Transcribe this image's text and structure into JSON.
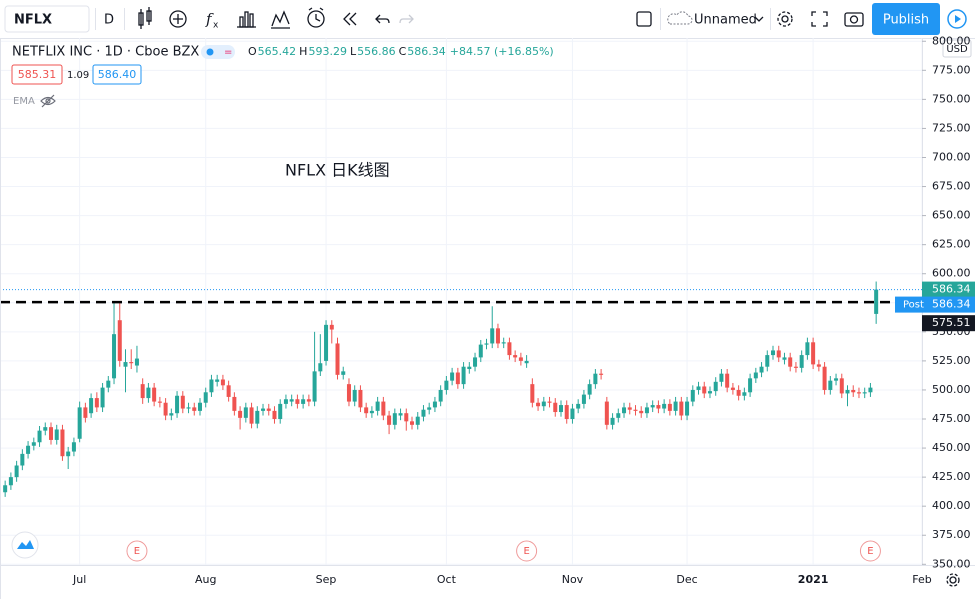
{
  "toolbar": {
    "symbol": "NFLX",
    "interval": "D",
    "layout_name": "Unnamed",
    "publish": "Publish"
  },
  "legend": {
    "title": "NETFLIX INC · 1D · Cboe BZX",
    "open_prefix": "O",
    "high_prefix": "H",
    "low_prefix": "L",
    "close_prefix": "C",
    "change": "+84.57 (+16.85%)",
    "bid": {
      "value": 585.31,
      "label": "585.31"
    },
    "spread": 1.09,
    "ask": {
      "value": 586.4,
      "label": "586.40"
    },
    "indicator": "EMA"
  },
  "chart_data": {
    "type": "candlestick",
    "annotation": "NFLX 日K线图",
    "currency": "USD",
    "up_color": "#26a69a",
    "down_color": "#ef5350",
    "xlim": [
      -0.9,
      160
    ],
    "ylim": [
      349.4,
      802.8
    ],
    "xticks": [
      {
        "value": 13,
        "label": "Jul"
      },
      {
        "value": 35,
        "label": "Aug"
      },
      {
        "value": 56,
        "label": "Sep"
      },
      {
        "value": 77,
        "label": "Oct"
      },
      {
        "value": 99,
        "label": "Nov"
      },
      {
        "value": 119,
        "label": "Dec"
      },
      {
        "value": 141,
        "label": "2021"
      },
      {
        "value": 160,
        "label": "Feb"
      }
    ],
    "yticks": [
      {
        "value": 350,
        "label": "350.00"
      },
      {
        "value": 375,
        "label": "375.00"
      },
      {
        "value": 400,
        "label": "400.00"
      },
      {
        "value": 425,
        "label": "425.00"
      },
      {
        "value": 450,
        "label": "450.00"
      },
      {
        "value": 475,
        "label": "475.00"
      },
      {
        "value": 500,
        "label": "500.00"
      },
      {
        "value": 525,
        "label": "525.00"
      },
      {
        "value": 550,
        "label": "550.00"
      },
      {
        "value": 575,
        "label": "575.00"
      },
      {
        "value": 600,
        "label": "600.00"
      },
      {
        "value": 625,
        "label": "625.00"
      },
      {
        "value": 650,
        "label": "650.00"
      },
      {
        "value": 675,
        "label": "675.00"
      },
      {
        "value": 700,
        "label": "700.00"
      },
      {
        "value": 725,
        "label": "725.00"
      },
      {
        "value": 750,
        "label": "750.00"
      },
      {
        "value": 775,
        "label": "775.00"
      },
      {
        "value": 800,
        "label": "800.00"
      }
    ],
    "post_label": "Post",
    "post_close": 575.51,
    "earnings_marker": "E",
    "earnings_index": [
      23,
      91,
      151
    ],
    "candles": [
      [
        412,
        422,
        408,
        418
      ],
      [
        418,
        429,
        414,
        425
      ],
      [
        425,
        439,
        421,
        435
      ],
      [
        435,
        449,
        431,
        445
      ],
      [
        445,
        456,
        441,
        452
      ],
      [
        452,
        459,
        448,
        455
      ],
      [
        455,
        469,
        451,
        465
      ],
      [
        465,
        472,
        461,
        468
      ],
      [
        468,
        472,
        453,
        457
      ],
      [
        457,
        470,
        453,
        466
      ],
      [
        466,
        470,
        439,
        443
      ],
      [
        443,
        451,
        432,
        447
      ],
      [
        447,
        459,
        443,
        455
      ],
      [
        458,
        490,
        455,
        485
      ],
      [
        485,
        489,
        472,
        476
      ],
      [
        480,
        497,
        476,
        493
      ],
      [
        493,
        498,
        481,
        485
      ],
      [
        485,
        506,
        481,
        502
      ],
      [
        502,
        512,
        498,
        508
      ],
      [
        510,
        575,
        505,
        548
      ],
      [
        560,
        575,
        520,
        525
      ],
      [
        520,
        535,
        498,
        524
      ],
      [
        524,
        535,
        518,
        523
      ],
      [
        521,
        538,
        515,
        527
      ],
      [
        505,
        510,
        488,
        493
      ],
      [
        493,
        506,
        489,
        502
      ],
      [
        502,
        506,
        486,
        490
      ],
      [
        490,
        494,
        485,
        489
      ],
      [
        489,
        493,
        474,
        478
      ],
      [
        478,
        484,
        474,
        480
      ],
      [
        480,
        499,
        476,
        495
      ],
      [
        495,
        499,
        480,
        484
      ],
      [
        484,
        489,
        480,
        485
      ],
      [
        485,
        489,
        478,
        482
      ],
      [
        482,
        493,
        478,
        489
      ],
      [
        489,
        502,
        485,
        498
      ],
      [
        498,
        513,
        494,
        509
      ],
      [
        507,
        513,
        503,
        509
      ],
      [
        509,
        513,
        500,
        504
      ],
      [
        504,
        508,
        490,
        494
      ],
      [
        494,
        498,
        478,
        482
      ],
      [
        482,
        486,
        466,
        476
      ],
      [
        476,
        489,
        472,
        485
      ],
      [
        485,
        489,
        467,
        471
      ],
      [
        471,
        486,
        467,
        482
      ],
      [
        482,
        488,
        478,
        484
      ],
      [
        484,
        488,
        478,
        482
      ],
      [
        482,
        486,
        471,
        475
      ],
      [
        475,
        492,
        471,
        488
      ],
      [
        488,
        496,
        484,
        492
      ],
      [
        490,
        496,
        486,
        492
      ],
      [
        492,
        496,
        484,
        488
      ],
      [
        488,
        496,
        484,
        492
      ],
      [
        492,
        496,
        486,
        490
      ],
      [
        490,
        550,
        486,
        516
      ],
      [
        516,
        548,
        512,
        523
      ],
      [
        525,
        560,
        521,
        556
      ],
      [
        556,
        560,
        540,
        552
      ],
      [
        540,
        545,
        509,
        513
      ],
      [
        513,
        520,
        509,
        516
      ],
      [
        505,
        510,
        486,
        490
      ],
      [
        490,
        504,
        486,
        500
      ],
      [
        500,
        504,
        481,
        485
      ],
      [
        485,
        489,
        476,
        480
      ],
      [
        480,
        486,
        476,
        482
      ],
      [
        482,
        494,
        478,
        490
      ],
      [
        490,
        494,
        474,
        478
      ],
      [
        478,
        482,
        462,
        470
      ],
      [
        470,
        484,
        466,
        480
      ],
      [
        478,
        484,
        474,
        480
      ],
      [
        480,
        484,
        465,
        473
      ],
      [
        473,
        477,
        466,
        470
      ],
      [
        470,
        481,
        466,
        477
      ],
      [
        477,
        487,
        473,
        483
      ],
      [
        483,
        489,
        479,
        485
      ],
      [
        485,
        494,
        481,
        490
      ],
      [
        490,
        504,
        486,
        500
      ],
      [
        500,
        512,
        496,
        508
      ],
      [
        508,
        519,
        504,
        515
      ],
      [
        515,
        519,
        501,
        505
      ],
      [
        505,
        524,
        501,
        520
      ],
      [
        518,
        524,
        514,
        520
      ],
      [
        520,
        532,
        516,
        528
      ],
      [
        528,
        543,
        524,
        539
      ],
      [
        539,
        544,
        535,
        540
      ],
      [
        540,
        572,
        536,
        553
      ],
      [
        553,
        557,
        536,
        540
      ],
      [
        540,
        545,
        536,
        541
      ],
      [
        541,
        545,
        526,
        530
      ],
      [
        530,
        534,
        524,
        528
      ],
      [
        528,
        532,
        521,
        525
      ],
      [
        523,
        530,
        519,
        525
      ],
      [
        505,
        510,
        485,
        489
      ],
      [
        489,
        493,
        482,
        486
      ],
      [
        486,
        494,
        482,
        490
      ],
      [
        490,
        494,
        485,
        489
      ],
      [
        489,
        493,
        477,
        481
      ],
      [
        481,
        491,
        477,
        487
      ],
      [
        487,
        491,
        471,
        475
      ],
      [
        475,
        488,
        471,
        484
      ],
      [
        484,
        492,
        480,
        488
      ],
      [
        488,
        500,
        484,
        496
      ],
      [
        496,
        509,
        492,
        505
      ],
      [
        505,
        518,
        501,
        514
      ],
      [
        514,
        518,
        509,
        513
      ],
      [
        490,
        494,
        466,
        470
      ],
      [
        470,
        480,
        466,
        476
      ],
      [
        476,
        484,
        472,
        480
      ],
      [
        480,
        489,
        476,
        485
      ],
      [
        485,
        489,
        479,
        483
      ],
      [
        483,
        487,
        478,
        482
      ],
      [
        482,
        486,
        476,
        480
      ],
      [
        480,
        489,
        476,
        485
      ],
      [
        485,
        491,
        481,
        487
      ],
      [
        487,
        491,
        480,
        484
      ],
      [
        484,
        492,
        480,
        488
      ],
      [
        488,
        492,
        478,
        482
      ],
      [
        482,
        494,
        478,
        490
      ],
      [
        490,
        494,
        474,
        478
      ],
      [
        478,
        494,
        474,
        490
      ],
      [
        490,
        504,
        486,
        500
      ],
      [
        500,
        507,
        496,
        503
      ],
      [
        503,
        507,
        493,
        497
      ],
      [
        497,
        503,
        493,
        499
      ],
      [
        499,
        511,
        495,
        507
      ],
      [
        507,
        518,
        503,
        514
      ],
      [
        514,
        518,
        498,
        502
      ],
      [
        502,
        506,
        496,
        500
      ],
      [
        500,
        504,
        491,
        495
      ],
      [
        495,
        502,
        491,
        498
      ],
      [
        498,
        514,
        494,
        510
      ],
      [
        510,
        519,
        506,
        515
      ],
      [
        515,
        524,
        511,
        520
      ],
      [
        520,
        534,
        516,
        530
      ],
      [
        530,
        538,
        526,
        534
      ],
      [
        534,
        538,
        524,
        528
      ],
      [
        526,
        532,
        522,
        528
      ],
      [
        528,
        532,
        516,
        520
      ],
      [
        520,
        524,
        515,
        519
      ],
      [
        519,
        534,
        515,
        530
      ],
      [
        530,
        545,
        526,
        541
      ],
      [
        541,
        545,
        518,
        522
      ],
      [
        522,
        526,
        516,
        520
      ],
      [
        520,
        524,
        496,
        500
      ],
      [
        500,
        512,
        496,
        508
      ],
      [
        508,
        514,
        504,
        510
      ],
      [
        510,
        514,
        493,
        497
      ],
      [
        497,
        504,
        486,
        500
      ],
      [
        500,
        504,
        494,
        498
      ],
      [
        498,
        502,
        493,
        497
      ],
      [
        497,
        502,
        493,
        498
      ],
      [
        498,
        506,
        494,
        502
      ],
      [
        565.42,
        593.29,
        556.86,
        586.34
      ]
    ]
  }
}
